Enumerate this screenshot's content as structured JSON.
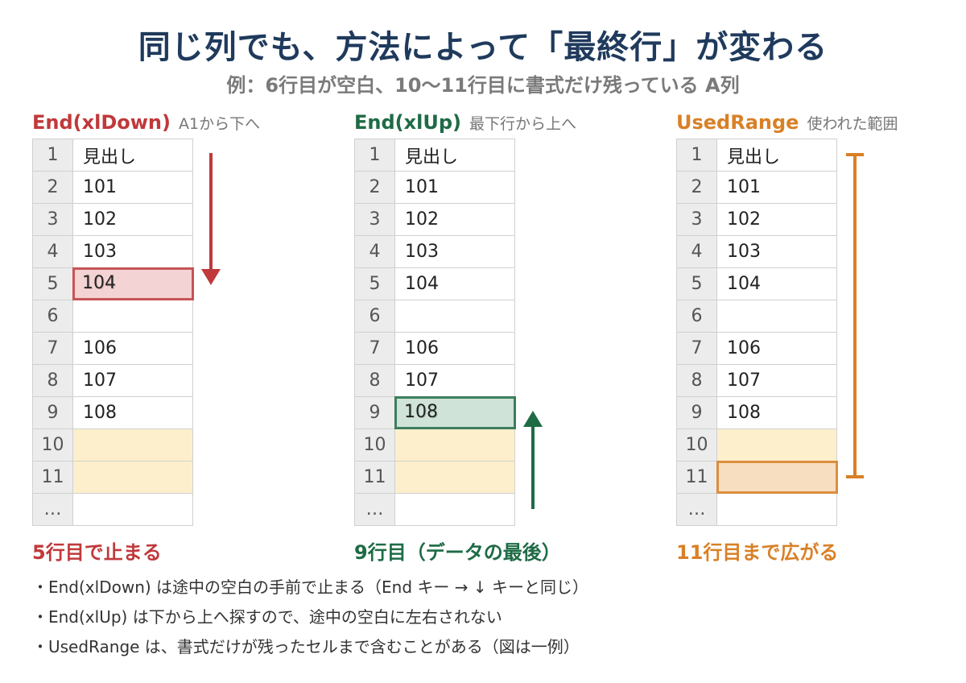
{
  "title": "同じ列でも、方法によって「最終行」が変わる",
  "subtitle": "例：6行目が空白、10〜11行目に書式だけ残っている A列",
  "panels": [
    {
      "method": "End(xlDown)",
      "note": "A1から下へ",
      "color": "#c0393b",
      "result": "5行目で止まる",
      "highlight_row": 5,
      "highlight_fill": "#f2cccc"
    },
    {
      "method": "End(xlUp)",
      "note": "最下行から上へ",
      "color": "#1e6b45",
      "result": "9行目（データの最後）",
      "highlight_row": 9,
      "highlight_fill": "#c7dfd2"
    },
    {
      "method": "UsedRange",
      "note": "使われた範囲",
      "color": "#d98026",
      "result": "11行目まで広がる",
      "highlight_row": 11,
      "highlight_fill": "#f7dcc0"
    }
  ],
  "rows": [
    {
      "n": "1",
      "v": "見出し",
      "format_only": false
    },
    {
      "n": "2",
      "v": "101",
      "format_only": false
    },
    {
      "n": "3",
      "v": "102",
      "format_only": false
    },
    {
      "n": "4",
      "v": "103",
      "format_only": false
    },
    {
      "n": "5",
      "v": "104",
      "format_only": false
    },
    {
      "n": "6",
      "v": "",
      "format_only": false
    },
    {
      "n": "7",
      "v": "106",
      "format_only": false
    },
    {
      "n": "8",
      "v": "107",
      "format_only": false
    },
    {
      "n": "9",
      "v": "108",
      "format_only": false
    },
    {
      "n": "10",
      "v": "",
      "format_only": true
    },
    {
      "n": "11",
      "v": "",
      "format_only": true
    },
    {
      "n": "…",
      "v": "",
      "format_only": false
    }
  ],
  "notes": [
    "・End(xlDown) は途中の空白の手前で止まる（End キー → ↓ キーと同じ）",
    "・End(xlUp) は下から上へ探すので、途中の空白に左右されない",
    "・UsedRange は、書式だけが残ったセルまで含むことがある（図は一例）"
  ]
}
